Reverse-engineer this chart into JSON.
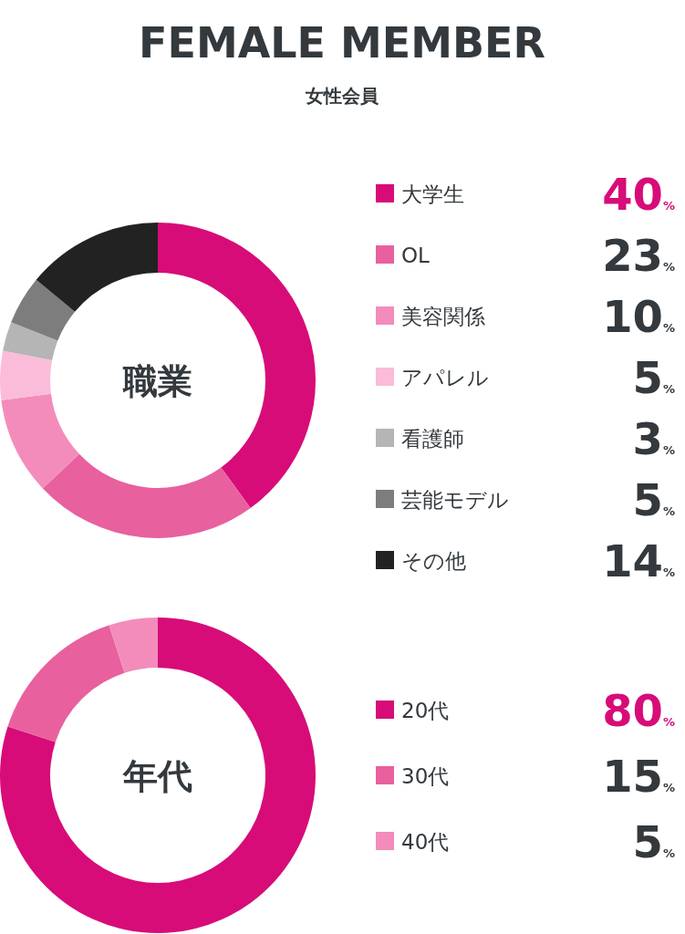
{
  "chart_data": [
    {
      "type": "donut",
      "title": "FEMALE MEMBER",
      "subtitle": "女性会員",
      "annotations": [
        "職業"
      ],
      "legend": "right",
      "categories": [
        "大学生",
        "OL",
        "美容関係",
        "アパレル",
        "看護師",
        "芸能モデル",
        "その他"
      ],
      "values": [
        40,
        23,
        10,
        5,
        3,
        5,
        14
      ],
      "colors": [
        "#d70c78",
        "#e8609e",
        "#f38cbb",
        "#fbbcd9",
        "#b5b5b5",
        "#7d7d7d",
        "#222222"
      ],
      "value_labels": [
        "40%",
        "23%",
        "10%",
        "5%",
        "3%",
        "5%",
        "14%"
      ]
    },
    {
      "type": "donut",
      "annotations": [
        "年代"
      ],
      "legend": "right",
      "categories": [
        "20代",
        "30代",
        "40代"
      ],
      "values": [
        80,
        15,
        5
      ],
      "colors": [
        "#d70c78",
        "#e8609e",
        "#f38cbb"
      ],
      "value_labels": [
        "80%",
        "15%",
        "5%"
      ]
    }
  ]
}
